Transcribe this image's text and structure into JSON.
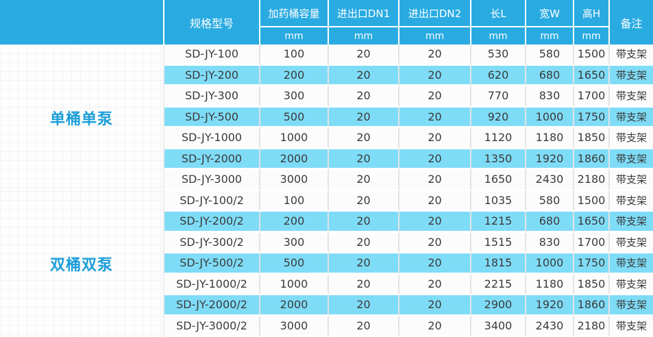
{
  "table": {
    "header": {
      "model": "规格型号",
      "capacity": "加药桶容量",
      "dn1": "进出口DN1",
      "dn2": "进出口DN2",
      "length": "长L",
      "width": "宽W",
      "height": "高H",
      "remark": "备注",
      "unit": "mm"
    },
    "groups": [
      {
        "label": "单桶单泵",
        "rows": [
          [
            "SD-JY-100",
            "100",
            "20",
            "20",
            "530",
            "580",
            "1500",
            "带支架"
          ],
          [
            "SD-JY-200",
            "200",
            "20",
            "20",
            "620",
            "680",
            "1650",
            "带支架"
          ],
          [
            "SD-JY-300",
            "300",
            "20",
            "20",
            "770",
            "830",
            "1700",
            "带支架"
          ],
          [
            "SD-JY-500",
            "500",
            "20",
            "20",
            "920",
            "1000",
            "1750",
            "带支架"
          ],
          [
            "SD-JY-1000",
            "1000",
            "20",
            "20",
            "1120",
            "1180",
            "1850",
            "带支架"
          ],
          [
            "SD-JY-2000",
            "2000",
            "20",
            "20",
            "1350",
            "1920",
            "1860",
            "带支架"
          ],
          [
            "SD-JY-3000",
            "3000",
            "20",
            "20",
            "1650",
            "2430",
            "2180",
            "带支架"
          ]
        ]
      },
      {
        "label": "双桶双泵",
        "rows": [
          [
            "SD-JY-100/2",
            "100",
            "20",
            "20",
            "1035",
            "580",
            "1500",
            "带支架"
          ],
          [
            "SD-JY-200/2",
            "200",
            "20",
            "20",
            "1215",
            "680",
            "1650",
            "带支架"
          ],
          [
            "SD-JY-300/2",
            "300",
            "20",
            "20",
            "1515",
            "830",
            "1700",
            "带支架"
          ],
          [
            "SD-JY-500/2",
            "500",
            "20",
            "20",
            "1815",
            "1000",
            "1750",
            "带支架"
          ],
          [
            "SD-JY-1000/2",
            "1000",
            "20",
            "20",
            "2215",
            "1180",
            "1850",
            "带支架"
          ],
          [
            "SD-JY-2000/2",
            "2000",
            "20",
            "20",
            "2900",
            "1920",
            "1860",
            "带支架"
          ],
          [
            "SD-JY-3000/2",
            "3000",
            "20",
            "20",
            "3400",
            "2430",
            "2180",
            "带支架"
          ]
        ]
      }
    ]
  },
  "colors": {
    "header_bg": "#29ABE2",
    "row_alt_bg": "#7FDCF7",
    "row_bg": "#FCFCFC",
    "group_text": "#1A9ED9",
    "data_text": "#3A3A3A",
    "divider": "#E3E3E3"
  }
}
